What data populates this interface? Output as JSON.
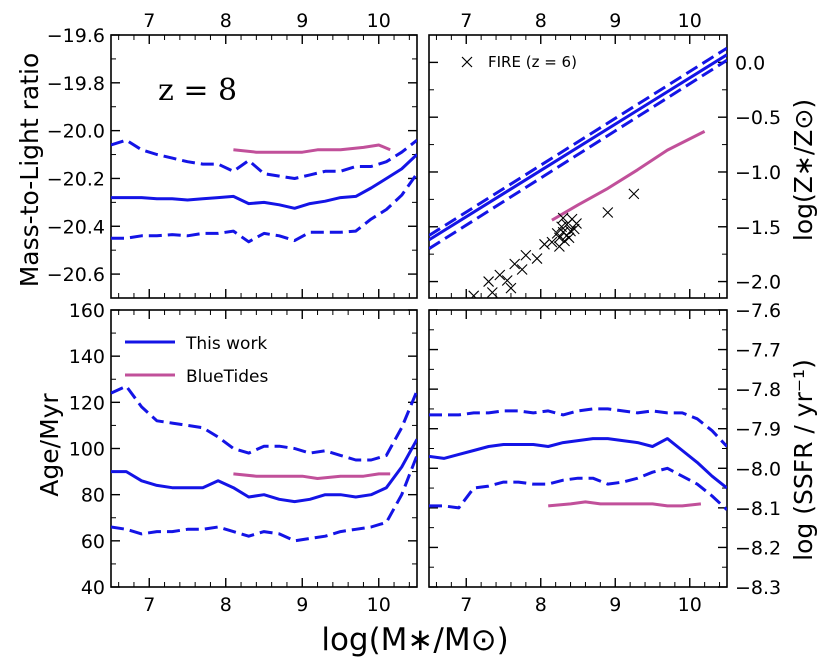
{
  "figure": {
    "xlabel_main": "log(M∗/M⊙)",
    "colors": {
      "this_work": "#1414e6",
      "bluetides": "#c1509a",
      "fire": "#000000"
    }
  },
  "chart_data": [
    {
      "id": "top-left",
      "type": "line",
      "ylabel": "Mass-to-Light ratio",
      "ylim": [
        -19.6,
        -20.7
      ],
      "xlim": [
        6.5,
        10.5
      ],
      "xticks": [
        7,
        8,
        9,
        10
      ],
      "xtick_labels": [
        "7",
        "8",
        "9",
        "10"
      ],
      "yticks": [
        -19.6,
        -19.8,
        -20.0,
        -20.2,
        -20.4,
        -20.6
      ],
      "ytick_labels": [
        "−19.6",
        "−19.8",
        "−20.0",
        "−20.2",
        "−20.4",
        "−20.6"
      ],
      "annotation": "z = 8",
      "series": [
        {
          "name": "This work median",
          "style": "solid",
          "color": "#1414e6",
          "x": [
            6.5,
            6.7,
            6.9,
            7.1,
            7.3,
            7.5,
            7.7,
            7.9,
            8.1,
            8.3,
            8.5,
            8.7,
            8.9,
            9.1,
            9.3,
            9.5,
            9.7,
            9.9,
            10.1,
            10.3,
            10.5
          ],
          "y": [
            -20.28,
            -20.28,
            -20.28,
            -20.285,
            -20.285,
            -20.29,
            -20.285,
            -20.28,
            -20.275,
            -20.305,
            -20.3,
            -20.31,
            -20.325,
            -20.305,
            -20.295,
            -20.28,
            -20.275,
            -20.24,
            -20.2,
            -20.16,
            -20.1
          ]
        },
        {
          "name": "This work upper",
          "style": "dashed",
          "color": "#1414e6",
          "x": [
            6.5,
            6.7,
            6.9,
            7.1,
            7.3,
            7.5,
            7.7,
            7.9,
            8.1,
            8.3,
            8.5,
            8.7,
            8.9,
            9.1,
            9.3,
            9.5,
            9.7,
            9.9,
            10.1,
            10.3,
            10.5
          ],
          "y": [
            -20.06,
            -20.04,
            -20.08,
            -20.1,
            -20.115,
            -20.13,
            -20.14,
            -20.14,
            -20.17,
            -20.125,
            -20.18,
            -20.19,
            -20.2,
            -20.185,
            -20.17,
            -20.17,
            -20.15,
            -20.15,
            -20.13,
            -20.09,
            -20.04
          ]
        },
        {
          "name": "This work lower",
          "style": "dashed",
          "color": "#1414e6",
          "x": [
            6.5,
            6.7,
            6.9,
            7.1,
            7.3,
            7.5,
            7.7,
            7.9,
            8.1,
            8.3,
            8.5,
            8.7,
            8.9,
            9.1,
            9.3,
            9.5,
            9.7,
            9.9,
            10.1,
            10.3,
            10.5
          ],
          "y": [
            -20.45,
            -20.45,
            -20.44,
            -20.44,
            -20.435,
            -20.44,
            -20.43,
            -20.43,
            -20.42,
            -20.465,
            -20.43,
            -20.44,
            -20.46,
            -20.425,
            -20.425,
            -20.425,
            -20.42,
            -20.37,
            -20.33,
            -20.27,
            -20.18
          ]
        },
        {
          "name": "BlueTides",
          "style": "solid",
          "color": "#c1509a",
          "x": [
            8.1,
            8.4,
            8.7,
            9.0,
            9.2,
            9.5,
            9.8,
            10.0,
            10.15
          ],
          "y": [
            -20.08,
            -20.09,
            -20.09,
            -20.09,
            -20.08,
            -20.08,
            -20.07,
            -20.06,
            -20.08
          ]
        }
      ]
    },
    {
      "id": "top-right",
      "type": "line",
      "ylabel": "log(Z∗/Z⊙)",
      "ylim": [
        0.25,
        -2.15
      ],
      "xlim": [
        6.5,
        10.5
      ],
      "xticks": [
        7,
        8,
        9,
        10
      ],
      "xtick_labels": [
        "7",
        "8",
        "9",
        "10"
      ],
      "yticks": [
        0.0,
        -0.5,
        -1.0,
        -1.5,
        -2.0
      ],
      "ytick_labels": [
        "0.0",
        "−0.5",
        "−1.0",
        "−1.5",
        "−2.0"
      ],
      "legend": {
        "label": "FIRE (z = 6)",
        "placement": "top-left"
      },
      "series": [
        {
          "name": "This work median",
          "style": "solid",
          "color": "#1414e6",
          "x": [
            6.5,
            10.5
          ],
          "y": [
            -1.62,
            0.07
          ]
        },
        {
          "name": "This work upper",
          "style": "dashed",
          "color": "#1414e6",
          "x": [
            6.5,
            10.5
          ],
          "y": [
            -1.58,
            0.13
          ]
        },
        {
          "name": "This work lower",
          "style": "dashed",
          "color": "#1414e6",
          "x": [
            6.5,
            10.5
          ],
          "y": [
            -1.7,
            0.02
          ]
        },
        {
          "name": "BlueTides",
          "style": "solid",
          "color": "#c1509a",
          "x": [
            8.15,
            8.5,
            8.9,
            9.3,
            9.7,
            10.2
          ],
          "y": [
            -1.44,
            -1.3,
            -1.15,
            -0.98,
            -0.8,
            -0.63
          ]
        },
        {
          "name": "FIRE (z = 6)",
          "style": "marker-x",
          "color": "#000000",
          "x": [
            7.1,
            7.3,
            7.35,
            7.45,
            7.55,
            7.6,
            7.65,
            7.75,
            7.8,
            7.95,
            8.05,
            8.15,
            8.22,
            8.25,
            8.28,
            8.3,
            8.32,
            8.35,
            8.38,
            8.4,
            8.42,
            8.45,
            8.48,
            8.25,
            8.3,
            8.35,
            8.9,
            9.25
          ],
          "y": [
            -2.13,
            -2.0,
            -2.1,
            -1.94,
            -1.99,
            -2.06,
            -1.84,
            -1.89,
            -1.76,
            -1.79,
            -1.66,
            -1.64,
            -1.56,
            -1.6,
            -1.5,
            -1.55,
            -1.63,
            -1.48,
            -1.6,
            -1.54,
            -1.43,
            -1.52,
            -1.47,
            -1.68,
            -1.42,
            -1.58,
            -1.37,
            -1.2
          ]
        }
      ]
    },
    {
      "id": "bottom-left",
      "type": "line",
      "ylabel": "Age/Myr",
      "ylim": [
        160,
        40
      ],
      "xlim": [
        6.5,
        10.5
      ],
      "xticks": [
        7,
        8,
        9,
        10
      ],
      "xtick_labels": [
        "7",
        "8",
        "9",
        "10"
      ],
      "yticks": [
        160,
        140,
        120,
        100,
        80,
        60,
        40
      ],
      "ytick_labels": [
        "160",
        "140",
        "120",
        "100",
        "80",
        "60",
        "40"
      ],
      "legend": {
        "placement": "top-left",
        "entries": [
          {
            "label": "This work",
            "color": "#1414e6"
          },
          {
            "label": "BlueTides",
            "color": "#c1509a"
          }
        ]
      },
      "series": [
        {
          "name": "This work median",
          "style": "solid",
          "color": "#1414e6",
          "x": [
            6.5,
            6.7,
            6.9,
            7.1,
            7.3,
            7.5,
            7.7,
            7.9,
            8.1,
            8.3,
            8.5,
            8.7,
            8.9,
            9.1,
            9.3,
            9.5,
            9.7,
            9.9,
            10.1,
            10.3,
            10.5
          ],
          "y": [
            90,
            90,
            86,
            84,
            83,
            83,
            83,
            86,
            83,
            79,
            80,
            78,
            77,
            78,
            80,
            80,
            79,
            80,
            83,
            92,
            104
          ]
        },
        {
          "name": "This work upper",
          "style": "dashed",
          "color": "#1414e6",
          "x": [
            6.5,
            6.7,
            6.9,
            7.1,
            7.3,
            7.5,
            7.7,
            7.9,
            8.1,
            8.3,
            8.5,
            8.7,
            8.9,
            9.1,
            9.3,
            9.5,
            9.7,
            9.9,
            10.1,
            10.3,
            10.5
          ],
          "y": [
            124,
            127,
            118,
            112,
            111,
            110,
            109,
            105,
            100,
            98,
            101,
            101,
            100,
            98,
            99,
            97,
            95,
            95,
            97,
            109,
            125
          ]
        },
        {
          "name": "This work lower",
          "style": "dashed",
          "color": "#1414e6",
          "x": [
            6.5,
            6.7,
            6.9,
            7.1,
            7.3,
            7.5,
            7.7,
            7.9,
            8.1,
            8.3,
            8.5,
            8.7,
            8.9,
            9.1,
            9.3,
            9.5,
            9.7,
            9.9,
            10.1,
            10.3,
            10.5
          ],
          "y": [
            66,
            65,
            63,
            64,
            64,
            65,
            65,
            66,
            64,
            62,
            64,
            63,
            60,
            61,
            62,
            64,
            65,
            66,
            68,
            80,
            97
          ]
        },
        {
          "name": "BlueTides",
          "style": "solid",
          "color": "#c1509a",
          "x": [
            8.1,
            8.4,
            8.7,
            9.0,
            9.2,
            9.5,
            9.8,
            10.0,
            10.15
          ],
          "y": [
            89,
            88,
            88,
            88,
            87,
            88,
            88,
            89,
            89
          ]
        }
      ]
    },
    {
      "id": "bottom-right",
      "type": "line",
      "ylabel": "log (SSFR / yr⁻¹)",
      "ylim": [
        -7.6,
        -8.3
      ],
      "xlim": [
        6.5,
        10.5
      ],
      "xticks": [
        7,
        8,
        9,
        10
      ],
      "xtick_labels": [
        "7",
        "8",
        "9",
        "10"
      ],
      "yticks": [
        -7.6,
        -7.7,
        -7.8,
        -7.9,
        -8.0,
        -8.1,
        -8.2,
        -8.3
      ],
      "ytick_labels": [
        "−7.6",
        "−7.7",
        "−7.8",
        "−7.9",
        "−8.0",
        "−8.1",
        "−8.2",
        "−8.3"
      ],
      "series": [
        {
          "name": "This work median",
          "style": "solid",
          "color": "#1414e6",
          "x": [
            6.5,
            6.7,
            6.9,
            7.1,
            7.3,
            7.5,
            7.7,
            7.9,
            8.1,
            8.3,
            8.5,
            8.7,
            8.9,
            9.1,
            9.3,
            9.5,
            9.7,
            9.9,
            10.1,
            10.3,
            10.5
          ],
          "y": [
            -7.97,
            -7.975,
            -7.965,
            -7.955,
            -7.945,
            -7.94,
            -7.94,
            -7.94,
            -7.945,
            -7.935,
            -7.93,
            -7.925,
            -7.925,
            -7.93,
            -7.935,
            -7.945,
            -7.925,
            -7.955,
            -7.985,
            -8.02,
            -8.05
          ]
        },
        {
          "name": "This work upper",
          "style": "dashed",
          "color": "#1414e6",
          "x": [
            6.5,
            6.7,
            6.9,
            7.1,
            7.3,
            7.5,
            7.7,
            7.9,
            8.1,
            8.3,
            8.5,
            8.7,
            8.9,
            9.1,
            9.3,
            9.5,
            9.7,
            9.9,
            10.1,
            10.3,
            10.5
          ],
          "y": [
            -7.865,
            -7.865,
            -7.865,
            -7.86,
            -7.86,
            -7.855,
            -7.855,
            -7.86,
            -7.855,
            -7.865,
            -7.855,
            -7.85,
            -7.85,
            -7.855,
            -7.86,
            -7.855,
            -7.86,
            -7.86,
            -7.875,
            -7.905,
            -7.945
          ]
        },
        {
          "name": "This work lower",
          "style": "dashed",
          "color": "#1414e6",
          "x": [
            6.5,
            6.7,
            6.9,
            7.1,
            7.3,
            7.5,
            7.7,
            7.9,
            8.1,
            8.3,
            8.5,
            8.7,
            8.9,
            9.1,
            9.3,
            9.5,
            9.7,
            9.9,
            10.1,
            10.3,
            10.5
          ],
          "y": [
            -8.095,
            -8.095,
            -8.1,
            -8.05,
            -8.045,
            -8.035,
            -8.035,
            -8.04,
            -8.04,
            -8.03,
            -8.025,
            -8.025,
            -8.04,
            -8.035,
            -8.025,
            -8.01,
            -8.0,
            -8.02,
            -8.04,
            -8.07,
            -8.105
          ]
        },
        {
          "name": "BlueTides",
          "style": "solid",
          "color": "#c1509a",
          "x": [
            8.1,
            8.4,
            8.6,
            8.8,
            9.0,
            9.2,
            9.5,
            9.7,
            9.9,
            10.15
          ],
          "y": [
            -8.095,
            -8.09,
            -8.085,
            -8.09,
            -8.09,
            -8.09,
            -8.09,
            -8.095,
            -8.095,
            -8.09
          ]
        }
      ]
    }
  ]
}
